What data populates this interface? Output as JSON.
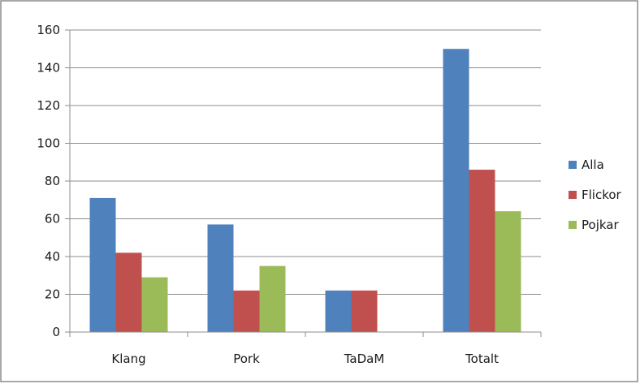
{
  "chart_data": {
    "type": "bar",
    "title": "",
    "xlabel": "",
    "ylabel": "",
    "categories": [
      "Klang",
      "Pork",
      "TaDaM",
      "Totalt"
    ],
    "series": [
      {
        "name": "Alla",
        "color": "#4f81bd",
        "values": [
          71,
          57,
          22,
          150
        ]
      },
      {
        "name": "Flickor",
        "color": "#c0504d",
        "values": [
          42,
          22,
          22,
          86
        ]
      },
      {
        "name": "Pojkar",
        "color": "#9bbb59",
        "values": [
          29,
          35,
          0,
          64
        ]
      }
    ],
    "ylim": [
      0,
      160
    ],
    "yticks": [
      0,
      20,
      40,
      60,
      80,
      100,
      120,
      140,
      160
    ],
    "grid": true,
    "legend": "right"
  }
}
